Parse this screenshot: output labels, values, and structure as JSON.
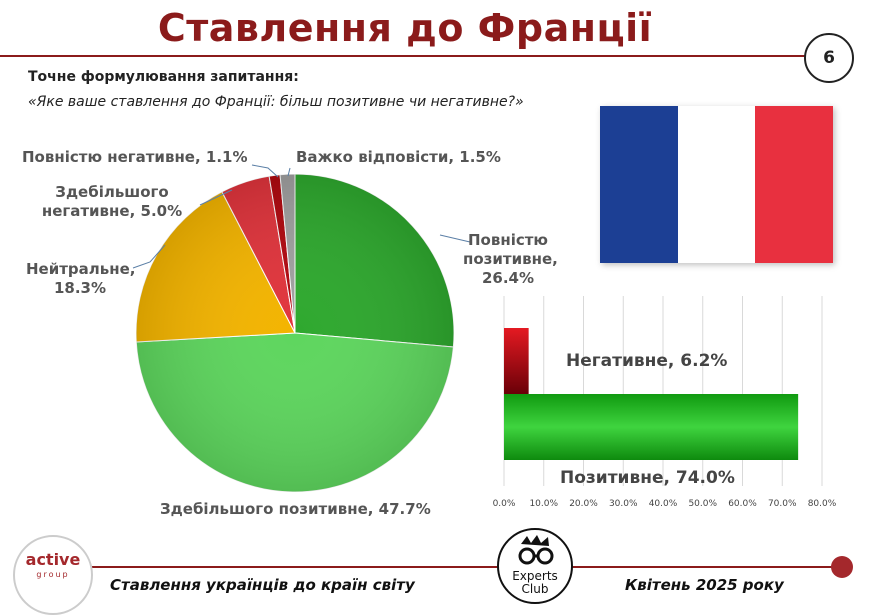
{
  "title": "Ставлення до Франції",
  "page_number": "6",
  "question_label": "Точне формулювання запитання:",
  "question_text": "«Яке ваше ставлення до Франції: більш позитивне чи негативне?»",
  "colors": {
    "title": "#8b1b1b",
    "flag": [
      "#1c3f94",
      "#ffffff",
      "#e8303f"
    ]
  },
  "chart_data": [
    {
      "type": "pie",
      "slices": [
        {
          "label": "Повністю позитивне",
          "value": 26.4,
          "display": "26.4%",
          "color": "#2ea82e"
        },
        {
          "label": "Здебільшого позитивне",
          "value": 47.7,
          "display": "47.7%",
          "color": "#5ed65e"
        },
        {
          "label": "Нейтральне",
          "value": 18.3,
          "display": "18.3%",
          "color": "#f3b400"
        },
        {
          "label": "Здебільшого негативне",
          "value": 5.0,
          "display": "5.0%",
          "color": "#e0343c"
        },
        {
          "label": "Повністю негативне",
          "value": 1.1,
          "display": "1.1%",
          "color": "#b0080f"
        },
        {
          "label": "Важко відповісти",
          "value": 1.5,
          "display": "1.5%",
          "color": "#a0a0a0"
        }
      ],
      "labels": {
        "fully_positive": [
          "Повністю",
          "позитивне,",
          "26.4%"
        ],
        "mostly_positive": "Здебільшого позитивне, 47.7%",
        "neutral": [
          "Нейтральне,",
          "18.3%"
        ],
        "mostly_negative": [
          "Здебільшого",
          "негативне, 5.0%"
        ],
        "fully_negative": "Повністю негативне, 1.1%",
        "hard_to_say": "Важко відповісти, 1.5%"
      }
    },
    {
      "type": "bar",
      "orientation": "horizontal",
      "categories": [
        "Негативне",
        "Позитивне"
      ],
      "values": [
        6.2,
        74.0
      ],
      "data_labels": [
        "Негативне, 6.2%",
        "Позитивне, 74.0%"
      ],
      "colors": [
        "#c0101a",
        "#22b022"
      ],
      "xlim": [
        0,
        80
      ],
      "ticks": [
        "0.0%",
        "10.0%",
        "20.0%",
        "30.0%",
        "40.0%",
        "50.0%",
        "60.0%",
        "70.0%",
        "80.0%"
      ],
      "grid": true
    }
  ],
  "footer": {
    "logo_main": "active",
    "logo_sub": "group",
    "left_text": "Ставлення українців до країн світу",
    "right_text": "Квітень 2025 року",
    "experts_line1": "Experts",
    "experts_line2": "Club"
  }
}
